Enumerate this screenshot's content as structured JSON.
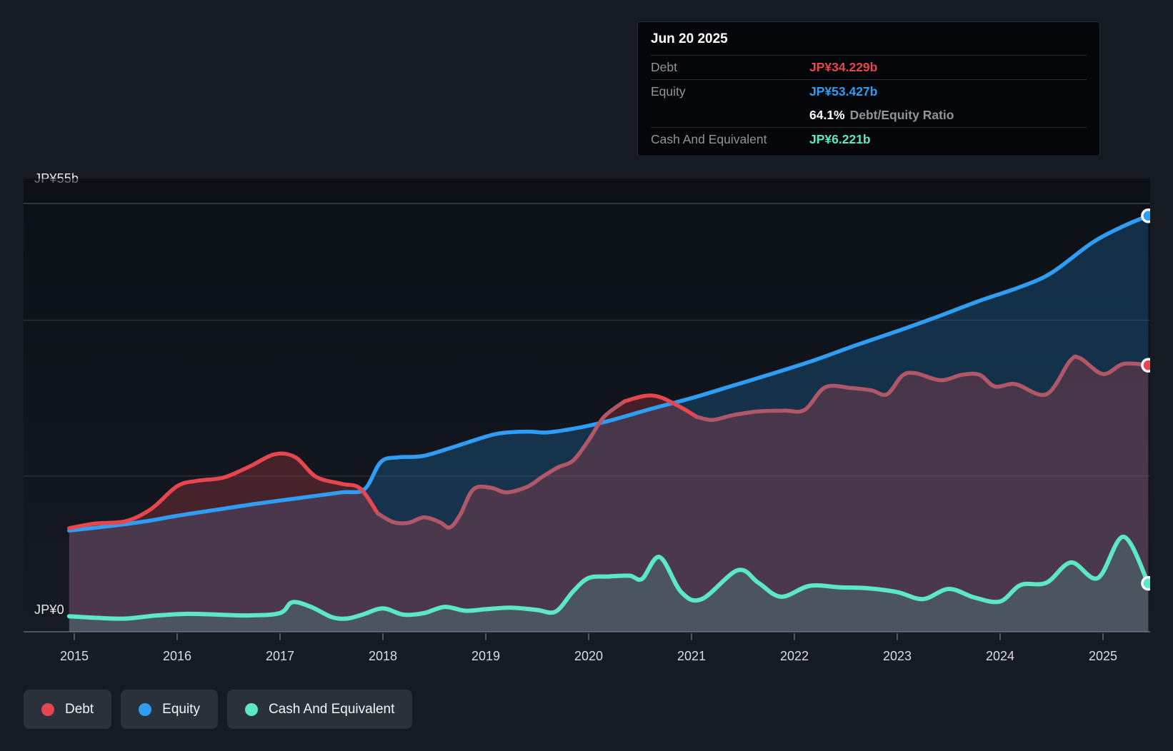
{
  "tooltip": {
    "date": "Jun 20 2025",
    "debt_label": "Debt",
    "debt_value": "JP¥34.229b",
    "equity_label": "Equity",
    "equity_value": "JP¥53.427b",
    "ratio_value": "64.1%",
    "ratio_label": "Debt/Equity Ratio",
    "cash_label": "Cash And Equivalent",
    "cash_value": "JP¥6.221b"
  },
  "y_axis": {
    "top_label": "JP¥55b",
    "zero_label": "JP¥0"
  },
  "x_axis": {
    "years": [
      "2015",
      "2016",
      "2017",
      "2018",
      "2019",
      "2020",
      "2021",
      "2022",
      "2023",
      "2024",
      "2025"
    ]
  },
  "legend": [
    {
      "label": "Debt"
    },
    {
      "label": "Equity"
    },
    {
      "label": "Cash And Equivalent"
    }
  ],
  "colors": {
    "debt": "#e6464d",
    "debt_muted": "#b05868",
    "equity": "#2e9df3",
    "cash": "#5ce8c5",
    "debt_fill": "rgba(226,68,75,0.25)",
    "equity_fill": "rgba(43,154,240,0.22)",
    "cash_fill": "rgba(87,230,194,0.16)",
    "grid_faint": "#272d37",
    "grid_top": "#3d434c",
    "axis_line": "#4d545e",
    "year_label": "#d9dde3",
    "marker_ring": "#f5f7f9"
  },
  "chart_data": {
    "type": "area",
    "title": "Debt to Equity History (JP¥ billions)",
    "x_unit": "year",
    "x_range": [
      2014.95,
      2025.47
    ],
    "ylim": [
      0,
      55
    ],
    "gridline_values": [
      55,
      40,
      20,
      0
    ],
    "grid": "horizontal-only",
    "legend_position": "bottom-left",
    "series": [
      {
        "name": "Equity",
        "role": "equity",
        "points": [
          [
            2014.95,
            13.0
          ],
          [
            2015.3,
            13.5
          ],
          [
            2015.7,
            14.2
          ],
          [
            2016.0,
            14.9
          ],
          [
            2016.4,
            15.7
          ],
          [
            2016.8,
            16.5
          ],
          [
            2017.2,
            17.2
          ],
          [
            2017.6,
            17.9
          ],
          [
            2017.82,
            18.3
          ],
          [
            2017.98,
            21.8
          ],
          [
            2018.15,
            22.4
          ],
          [
            2018.4,
            22.6
          ],
          [
            2018.75,
            24.0
          ],
          [
            2019.1,
            25.4
          ],
          [
            2019.4,
            25.7
          ],
          [
            2019.6,
            25.6
          ],
          [
            2019.9,
            26.2
          ],
          [
            2020.2,
            27.1
          ],
          [
            2020.6,
            28.6
          ],
          [
            2021.0,
            30.0
          ],
          [
            2021.4,
            31.6
          ],
          [
            2021.8,
            33.2
          ],
          [
            2022.2,
            34.9
          ],
          [
            2022.6,
            36.8
          ],
          [
            2023.0,
            38.6
          ],
          [
            2023.4,
            40.5
          ],
          [
            2023.8,
            42.5
          ],
          [
            2024.2,
            44.3
          ],
          [
            2024.5,
            46.1
          ],
          [
            2024.9,
            50.0
          ],
          [
            2025.2,
            52.1
          ],
          [
            2025.44,
            53.427
          ]
        ]
      },
      {
        "name": "Debt",
        "role": "debt",
        "points": [
          [
            2014.95,
            13.3
          ],
          [
            2015.2,
            13.9
          ],
          [
            2015.5,
            14.2
          ],
          [
            2015.75,
            15.8
          ],
          [
            2016.0,
            18.7
          ],
          [
            2016.2,
            19.4
          ],
          [
            2016.45,
            19.8
          ],
          [
            2016.7,
            21.2
          ],
          [
            2016.95,
            22.8
          ],
          [
            2017.15,
            22.4
          ],
          [
            2017.35,
            19.9
          ],
          [
            2017.6,
            19.0
          ],
          [
            2017.78,
            18.4
          ],
          [
            2017.95,
            15.2
          ],
          [
            2018.1,
            14.1
          ],
          [
            2018.25,
            14.0
          ],
          [
            2018.4,
            14.7
          ],
          [
            2018.55,
            14.1
          ],
          [
            2018.65,
            13.4
          ],
          [
            2018.75,
            15.0
          ],
          [
            2018.88,
            18.3
          ],
          [
            2019.05,
            18.5
          ],
          [
            2019.2,
            17.9
          ],
          [
            2019.4,
            18.6
          ],
          [
            2019.55,
            19.9
          ],
          [
            2019.7,
            21.1
          ],
          [
            2019.85,
            22.0
          ],
          [
            2020.0,
            24.6
          ],
          [
            2020.15,
            27.6
          ],
          [
            2020.35,
            29.6
          ],
          [
            2020.55,
            30.3
          ],
          [
            2020.7,
            30.1
          ],
          [
            2020.9,
            28.8
          ],
          [
            2021.05,
            27.6
          ],
          [
            2021.2,
            27.2
          ],
          [
            2021.4,
            27.8
          ],
          [
            2021.65,
            28.3
          ],
          [
            2021.9,
            28.4
          ],
          [
            2022.1,
            28.5
          ],
          [
            2022.3,
            31.4
          ],
          [
            2022.55,
            31.3
          ],
          [
            2022.75,
            31.0
          ],
          [
            2022.9,
            30.5
          ],
          [
            2023.05,
            32.9
          ],
          [
            2023.18,
            33.2
          ],
          [
            2023.42,
            32.3
          ],
          [
            2023.63,
            33.0
          ],
          [
            2023.8,
            33.0
          ],
          [
            2023.95,
            31.5
          ],
          [
            2024.15,
            31.8
          ],
          [
            2024.45,
            30.5
          ],
          [
            2024.68,
            34.8
          ],
          [
            2024.78,
            35.1
          ],
          [
            2025.0,
            33.1
          ],
          [
            2025.2,
            34.4
          ],
          [
            2025.44,
            34.229
          ]
        ]
      },
      {
        "name": "Cash And Equivalent",
        "role": "cash",
        "points": [
          [
            2014.95,
            2.0
          ],
          [
            2015.2,
            1.8
          ],
          [
            2015.5,
            1.7
          ],
          [
            2015.8,
            2.1
          ],
          [
            2016.1,
            2.3
          ],
          [
            2016.4,
            2.2
          ],
          [
            2016.7,
            2.1
          ],
          [
            2017.0,
            2.4
          ],
          [
            2017.12,
            3.8
          ],
          [
            2017.3,
            3.2
          ],
          [
            2017.5,
            1.9
          ],
          [
            2017.65,
            1.7
          ],
          [
            2017.8,
            2.2
          ],
          [
            2018.0,
            3.0
          ],
          [
            2018.2,
            2.2
          ],
          [
            2018.4,
            2.4
          ],
          [
            2018.6,
            3.2
          ],
          [
            2018.8,
            2.7
          ],
          [
            2019.0,
            2.9
          ],
          [
            2019.25,
            3.1
          ],
          [
            2019.5,
            2.8
          ],
          [
            2019.68,
            2.6
          ],
          [
            2019.85,
            5.2
          ],
          [
            2020.0,
            6.9
          ],
          [
            2020.2,
            7.1
          ],
          [
            2020.4,
            7.2
          ],
          [
            2020.52,
            6.8
          ],
          [
            2020.69,
            9.6
          ],
          [
            2020.9,
            5.1
          ],
          [
            2021.1,
            4.2
          ],
          [
            2021.45,
            7.9
          ],
          [
            2021.65,
            6.3
          ],
          [
            2021.87,
            4.5
          ],
          [
            2022.15,
            5.9
          ],
          [
            2022.45,
            5.7
          ],
          [
            2022.7,
            5.6
          ],
          [
            2023.0,
            5.1
          ],
          [
            2023.25,
            4.2
          ],
          [
            2023.5,
            5.5
          ],
          [
            2023.75,
            4.4
          ],
          [
            2024.0,
            3.9
          ],
          [
            2024.2,
            6.0
          ],
          [
            2024.45,
            6.3
          ],
          [
            2024.69,
            8.9
          ],
          [
            2024.95,
            6.9
          ],
          [
            2025.2,
            12.2
          ],
          [
            2025.44,
            6.221
          ]
        ]
      }
    ],
    "end_markers": [
      {
        "series": "Equity",
        "x": 2025.44,
        "y": 53.427
      },
      {
        "series": "Debt",
        "x": 2025.44,
        "y": 34.229
      },
      {
        "series": "Cash And Equivalent",
        "x": 2025.44,
        "y": 6.221
      }
    ]
  }
}
